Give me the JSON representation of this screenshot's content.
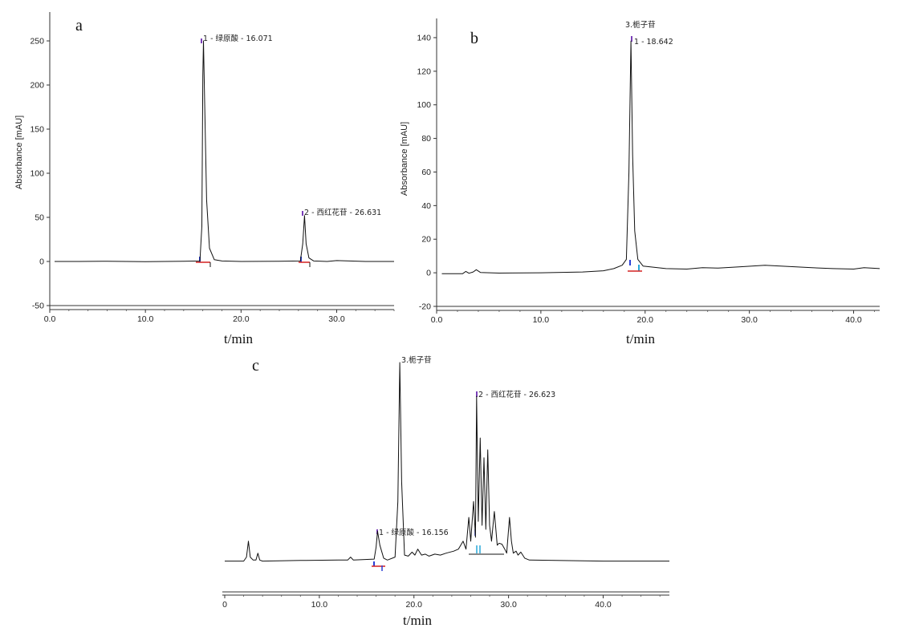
{
  "colors": {
    "trace": "#111111",
    "axis": "#333333",
    "marker_blue": "#2a3fd6",
    "marker_red": "#d42020",
    "marker_cyan": "#29a8d8",
    "marker_purple": "#7a3fb8"
  },
  "chart_data": [
    {
      "panel": "a",
      "type": "line",
      "title": "",
      "xlabel": "t/min",
      "ylabel": "Absorbance [mAU]",
      "xlim": [
        0,
        36
      ],
      "ylim": [
        -50,
        280
      ],
      "x_ticks": [
        "0.0",
        "10.0",
        "20.0",
        "30.0"
      ],
      "y_ticks": [
        "-50",
        "0",
        "50",
        "100",
        "150",
        "200",
        "250"
      ],
      "peaks": [
        {
          "label": "1 - 绿原酸 - 16.071",
          "rt": 16.071,
          "height": 250
        },
        {
          "label": "2 - 西红花苷 - 26.631",
          "rt": 26.631,
          "height": 52
        }
      ],
      "series": [
        {
          "x": [
            0.5,
            3,
            6,
            10,
            14,
            15.7,
            15.9,
            16.0,
            16.071,
            16.2,
            16.4,
            16.7,
            17.2,
            18,
            20,
            24,
            26.2,
            26.45,
            26.631,
            26.8,
            27.1,
            27.6,
            29,
            30,
            33,
            36
          ],
          "y": [
            0,
            0,
            0.3,
            -0.2,
            0.2,
            0.5,
            40,
            210,
            250,
            180,
            70,
            15,
            2,
            0.5,
            0,
            0.3,
            0.5,
            20,
            52,
            20,
            4,
            0.5,
            0,
            1,
            0,
            0
          ]
        }
      ]
    },
    {
      "panel": "b",
      "type": "line",
      "title": "",
      "xlabel": "t/min",
      "ylabel": "Absorbance [mAU]",
      "xlim": [
        0,
        42.5
      ],
      "ylim": [
        -20,
        150
      ],
      "x_ticks": [
        "0.0",
        "10.0",
        "20.0",
        "30.0",
        "40.0"
      ],
      "y_ticks": [
        "-20",
        "0",
        "20",
        "40",
        "60",
        "80",
        "100",
        "120",
        "140"
      ],
      "peaks": [
        {
          "label": "1 - 18.642",
          "rt": 18.642,
          "height": 138
        }
      ],
      "annotations": [
        "3.栀子苷"
      ],
      "series": [
        {
          "x": [
            0.5,
            2.5,
            2.8,
            3.1,
            3.5,
            3.8,
            4.2,
            6,
            10,
            14,
            16,
            17,
            17.8,
            18.2,
            18.45,
            18.642,
            18.8,
            19.0,
            19.3,
            19.8,
            20.5,
            22,
            24,
            25.5,
            27,
            29,
            31.5,
            33,
            36,
            38,
            40,
            41,
            42.5
          ],
          "y": [
            -0.5,
            -0.5,
            0.8,
            -0.3,
            0.5,
            1.8,
            0.2,
            -0.2,
            0,
            0.5,
            1.2,
            2.5,
            4.5,
            8,
            60,
            138,
            70,
            25,
            8,
            4,
            3.5,
            2.5,
            2.2,
            3,
            2.8,
            3.5,
            4.5,
            4,
            3,
            2.5,
            2.2,
            3,
            2.5
          ]
        }
      ]
    },
    {
      "panel": "c",
      "type": "line",
      "title": "",
      "xlabel": "t/min",
      "ylabel": "",
      "xlim": [
        0,
        47
      ],
      "ylim": [
        -3,
        100
      ],
      "x_ticks": [
        "0",
        "10.0",
        "20.0",
        "30.0",
        "40.0"
      ],
      "y_ticks": [],
      "peaks": [
        {
          "label": "1 - 绿原酸 - 16.156",
          "rt": 16.156,
          "height": 15
        },
        {
          "label": "2 - 西红花苷 - 26.623",
          "rt": 26.623,
          "height": 83
        }
      ],
      "annotations": [
        "3.栀子苷"
      ],
      "series": [
        {
          "x": [
            0,
            2.0,
            2.3,
            2.5,
            2.7,
            3.0,
            3.3,
            3.5,
            3.7,
            4,
            8,
            12,
            13,
            13.3,
            13.6,
            15.8,
            16.0,
            16.156,
            16.4,
            16.8,
            17.2,
            18.0,
            18.3,
            18.5,
            18.7,
            19.0,
            19.4,
            19.8,
            20.1,
            20.4,
            20.8,
            21.2,
            21.6,
            22.2,
            22.8,
            23.4,
            24.2,
            24.7,
            25.2,
            25.5,
            25.8,
            26.0,
            26.3,
            26.5,
            26.623,
            26.8,
            27.0,
            27.2,
            27.4,
            27.6,
            27.8,
            28.0,
            28.2,
            28.5,
            28.8,
            29.0,
            29.3,
            29.6,
            29.8,
            30.1,
            30.3,
            30.5,
            30.8,
            31.0,
            31.3,
            31.7,
            32.2,
            35,
            40,
            47
          ],
          "y": [
            0,
            0,
            2,
            10,
            2,
            0.5,
            0.5,
            4,
            0.5,
            0,
            0.3,
            0.5,
            0.5,
            2,
            0.5,
            1,
            7,
            15,
            8,
            1.5,
            0.5,
            2,
            30,
            100,
            40,
            3,
            2.5,
            4.5,
            3,
            6,
            3,
            3.5,
            2.5,
            3.5,
            3,
            4,
            5,
            6,
            10,
            6,
            22,
            10,
            30,
            12,
            83,
            20,
            62,
            18,
            52,
            16,
            56,
            18,
            10,
            25,
            8,
            9,
            8.5,
            6,
            4,
            22,
            10,
            4,
            5,
            3,
            4.5,
            1.5,
            0.5,
            0.3,
            0,
            0
          ]
        }
      ]
    }
  ]
}
